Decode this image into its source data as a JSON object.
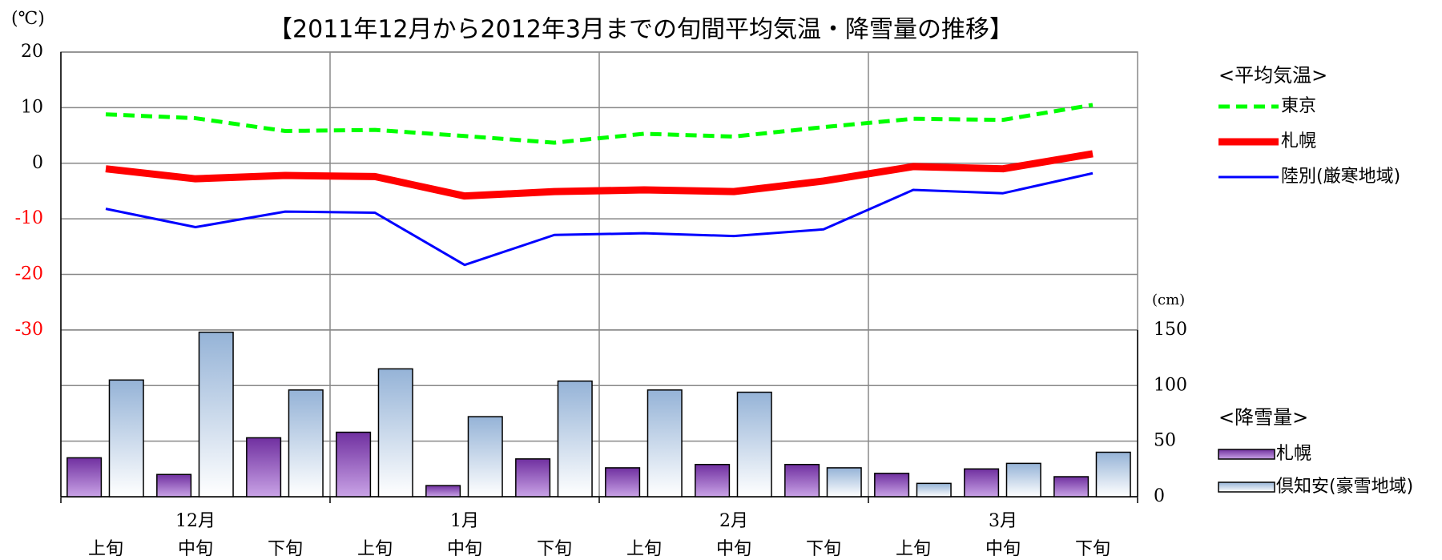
{
  "chart_data": {
    "type": "combo",
    "title": "【2011年12月から2012年3月までの旬間平均気温・降雪量の推移】",
    "y_unit": "(℃)",
    "y2_unit": "(cm)",
    "categories": [
      "上旬",
      "中旬",
      "下旬",
      "上旬",
      "中旬",
      "下旬",
      "上旬",
      "中旬",
      "下旬",
      "上旬",
      "中旬",
      "下旬"
    ],
    "groups": [
      "12月",
      "1月",
      "2月",
      "3月"
    ],
    "ylim": [
      -60,
      20
    ],
    "yticks": [
      -30,
      -20,
      -10,
      0,
      10,
      20
    ],
    "negative_tick_color": "#ff0000",
    "y2lim": [
      0,
      400
    ],
    "y2ticks": [
      0,
      50,
      100,
      150
    ],
    "grid": true,
    "legend_groups": [
      "<平均気温>",
      "<降雪量>"
    ],
    "series": [
      {
        "name": "東京",
        "type": "line",
        "style": "dashed",
        "color": "#00ff00",
        "values": [
          8.8,
          8.1,
          5.8,
          6.0,
          4.9,
          3.7,
          5.3,
          4.8,
          6.5,
          8.0,
          7.8,
          10.5
        ]
      },
      {
        "name": "札幌",
        "type": "line",
        "color": "#ff0000",
        "values": [
          -1.0,
          -2.8,
          -2.2,
          -2.4,
          -5.9,
          -5.1,
          -4.8,
          -5.1,
          -3.2,
          -0.6,
          -1.0,
          1.7
        ]
      },
      {
        "name": "陸別(厳寒地域)",
        "type": "line",
        "color": "#0000ff",
        "values": [
          -8.2,
          -11.5,
          -8.7,
          -8.9,
          -18.3,
          -12.9,
          -12.6,
          -13.1,
          -11.9,
          -4.8,
          -5.4,
          -1.8
        ]
      },
      {
        "name": "札幌",
        "type": "bar",
        "axis": "y2",
        "color": "#7030a0",
        "gradient_end": "#c9a3e6",
        "values": [
          35,
          20,
          53,
          58,
          10,
          34,
          26,
          29,
          29,
          21,
          25,
          18
        ]
      },
      {
        "name": "倶知安(豪雪地域)",
        "type": "bar",
        "axis": "y2",
        "color": "#95b3d7",
        "gradient_end": "#ffffff",
        "values": [
          105,
          148,
          96,
          115,
          72,
          104,
          96,
          94,
          26,
          12,
          30,
          40
        ]
      }
    ]
  }
}
